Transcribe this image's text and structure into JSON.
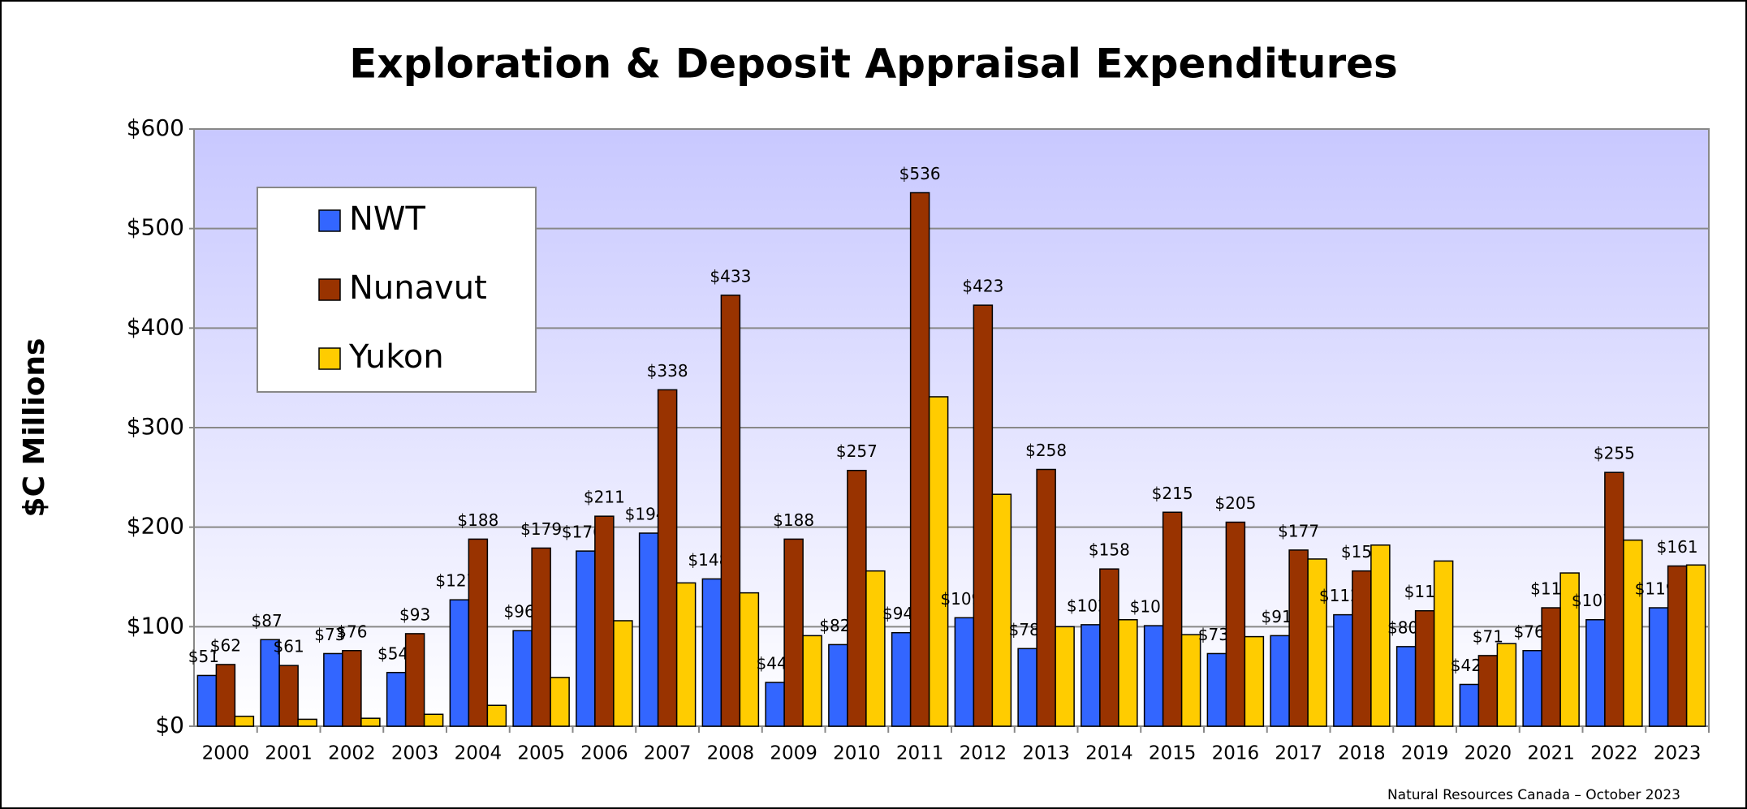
{
  "chart_data": {
    "type": "bar",
    "title": "Exploration & Deposit Appraisal Expenditures",
    "ylabel": "$C Millions",
    "source": "Natural Resources Canada – October 2023",
    "categories": [
      "2000",
      "2001",
      "2002",
      "2003",
      "2004",
      "2005",
      "2006",
      "2007",
      "2008",
      "2009",
      "2010",
      "2011",
      "2012",
      "2013",
      "2014",
      "2015",
      "2016",
      "2017",
      "2018",
      "2019",
      "2020",
      "2021",
      "2022",
      "2023"
    ],
    "series": [
      {
        "name": "NWT",
        "color": "#3366ff",
        "values": [
          51,
          87,
          73,
          54,
          127,
          96,
          176,
          194,
          148,
          44,
          82,
          94,
          109,
          78,
          102,
          101,
          73,
          91,
          112,
          80,
          42,
          76,
          107,
          119
        ],
        "value_labels": [
          "$51",
          "$87",
          "$73",
          "$54",
          "$127",
          "$96",
          "$176",
          "$194",
          "$148",
          "$44",
          "$82",
          "$94",
          "$109",
          "$78",
          "$102",
          "$101",
          "$73",
          "$91",
          "$112",
          "$80",
          "$42",
          "$76",
          "$107",
          "$119"
        ]
      },
      {
        "name": "Nunavut",
        "color": "#993300",
        "values": [
          62,
          61,
          76,
          93,
          188,
          179,
          211,
          338,
          433,
          188,
          257,
          536,
          423,
          258,
          158,
          215,
          205,
          177,
          156,
          116,
          71,
          119,
          255,
          161
        ],
        "value_labels": [
          "$62",
          "$61",
          "$76",
          "$93",
          "$188",
          "$179",
          "$211",
          "$338",
          "$433",
          "$188",
          "$257",
          "$536",
          "$423",
          "$258",
          "$158",
          "$215",
          "$205",
          "$177",
          "$156",
          "$116",
          "$71",
          "$119",
          "$255",
          "$161"
        ]
      },
      {
        "name": "Yukon",
        "color": "#ffcc00",
        "values": [
          10,
          7,
          8,
          12,
          21,
          49,
          106,
          144,
          134,
          91,
          156,
          331,
          233,
          100,
          107,
          92,
          90,
          168,
          182,
          166,
          83,
          154,
          187,
          162
        ]
      }
    ],
    "ylim": [
      0,
      600
    ],
    "yticks": [
      {
        "value": 0,
        "label": "$0"
      },
      {
        "value": 100,
        "label": "$100"
      },
      {
        "value": 200,
        "label": "$200"
      },
      {
        "value": 300,
        "label": "$300"
      },
      {
        "value": 400,
        "label": "$400"
      },
      {
        "value": 500,
        "label": "$500"
      },
      {
        "value": 600,
        "label": "$600"
      }
    ],
    "grid": true,
    "legend": "upper left"
  }
}
